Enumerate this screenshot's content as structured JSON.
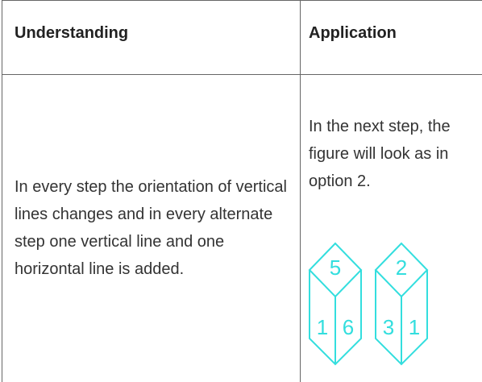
{
  "table": {
    "header": [
      "Understanding",
      "Application"
    ],
    "rows": [
      [
        "In every step the orientation of vertical lines changes and in every alternate step one vertical line and one horizontal line is added.",
        "In the next step, the figure will look as in option 2."
      ]
    ]
  },
  "figure": {
    "cubes": [
      {
        "top": "5",
        "left": "1",
        "right": "6"
      },
      {
        "top": "2",
        "left": "3",
        "right": "1"
      }
    ]
  }
}
